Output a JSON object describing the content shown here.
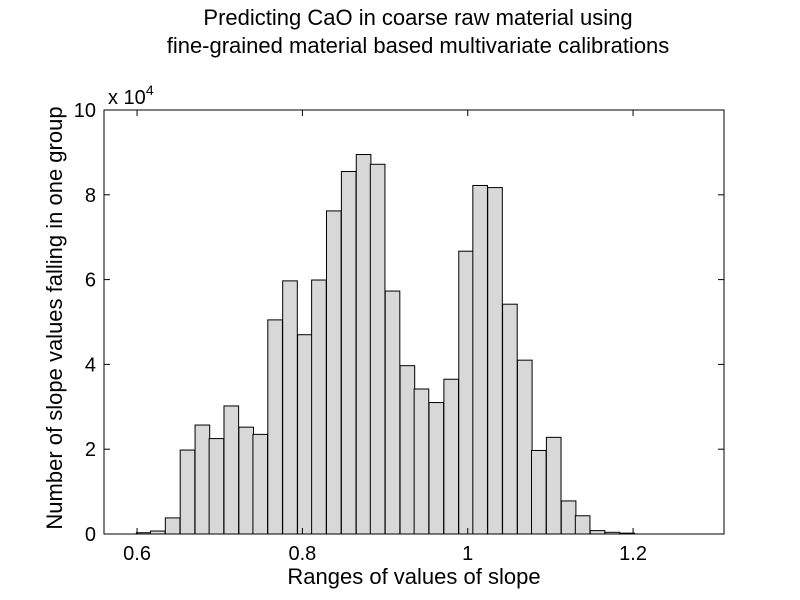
{
  "chart_data": {
    "type": "bar",
    "title_lines": [
      "Predicting CaO in coarse raw material using",
      "fine-grained material based multivariate calibrations"
    ],
    "xlabel": "Ranges of values of slope",
    "ylabel": "Number of slope values falling in one group",
    "y_multiplier_base": "x 10",
    "y_multiplier_exponent": "4",
    "xlim": [
      0.56,
      1.31
    ],
    "ylim": [
      0,
      10
    ],
    "x_ticks": [
      0.6,
      0.8,
      1.0,
      1.2
    ],
    "x_tick_labels": [
      "0.6",
      "0.8",
      "1",
      "1.2"
    ],
    "y_ticks": [
      0,
      2,
      4,
      6,
      8,
      10
    ],
    "y_tick_labels": [
      "0",
      "2",
      "4",
      "6",
      "8",
      "10"
    ],
    "bar_width": 0.0177,
    "bar_color": "#d8d8d8",
    "bin_centers": [
      0.608,
      0.625,
      0.643,
      0.661,
      0.679,
      0.696,
      0.714,
      0.732,
      0.749,
      0.767,
      0.785,
      0.803,
      0.82,
      0.838,
      0.856,
      0.874,
      0.891,
      0.909,
      0.927,
      0.944,
      0.962,
      0.98,
      0.998,
      1.015,
      1.033,
      1.051,
      1.069,
      1.086,
      1.104,
      1.122,
      1.139,
      1.157,
      1.175,
      1.193,
      1.21,
      1.228,
      1.246,
      1.263
    ],
    "values": [
      0.03,
      0.07,
      0.38,
      1.98,
      2.57,
      2.25,
      3.02,
      2.52,
      2.35,
      5.05,
      5.97,
      4.7,
      5.99,
      7.62,
      8.55,
      8.95,
      8.72,
      5.73,
      3.97,
      3.42,
      3.1,
      3.65,
      6.67,
      8.22,
      8.17,
      5.42,
      4.1,
      1.97,
      2.28,
      0.78,
      0.43,
      0.08,
      0.04,
      0.02,
      0.0,
      0.0,
      0.0,
      0.0
    ]
  }
}
